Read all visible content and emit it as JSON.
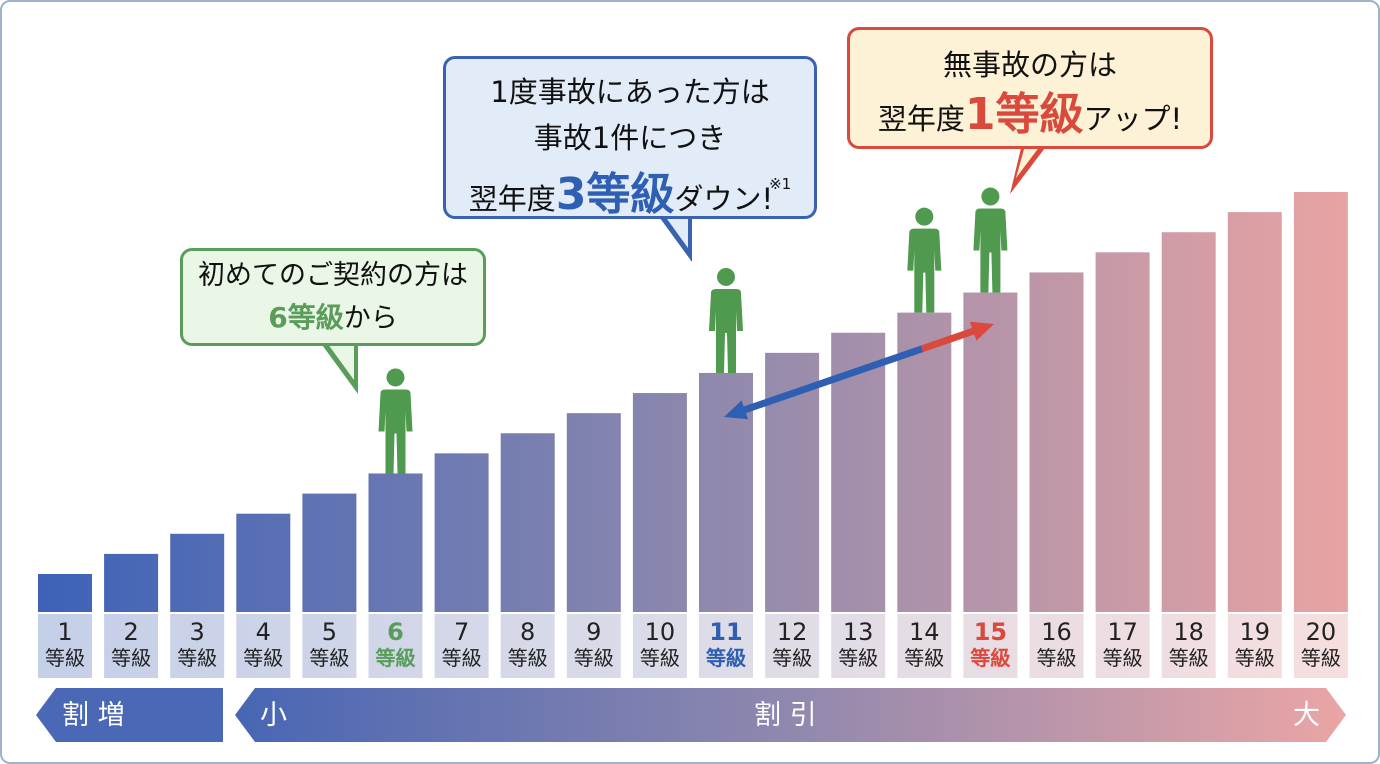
{
  "colors": {
    "bar_start": "#3d62b8",
    "bar_mid": "#8c88ae",
    "bar_end": "#e8a3a3",
    "green": "#5a9d5a",
    "blue": "#2f5fb3",
    "red": "#d94a3d",
    "person": "#4f9a4f"
  },
  "bubbles": {
    "first": {
      "line1": "初めてのご契約の方は",
      "big": "6等級",
      "rest": "から"
    },
    "accident": {
      "line1": "1度事故にあった方は",
      "line2": "事故1件につき",
      "prefix": "翌年度",
      "big": "3等級",
      "suffix": "ダウン!",
      "note": "※1"
    },
    "noaccident": {
      "line1": "無事故の方は",
      "prefix": "翌年度",
      "big": "1等級",
      "suffix": "アップ!"
    }
  },
  "grade_unit": "等級",
  "highlights": {
    "first": 6,
    "accident": 11,
    "noaccident": 15
  },
  "band": {
    "surcharge_label": "割 増",
    "discount_small": "小",
    "discount_label": "割 引",
    "discount_large": "大"
  },
  "chart_data": {
    "type": "bar",
    "categories": [
      "1",
      "2",
      "3",
      "4",
      "5",
      "6",
      "7",
      "8",
      "9",
      "10",
      "11",
      "12",
      "13",
      "14",
      "15",
      "16",
      "17",
      "18",
      "19",
      "20"
    ],
    "values": [
      1,
      2,
      3,
      4,
      5,
      6,
      7,
      8,
      9,
      10,
      11,
      12,
      13,
      14,
      15,
      16,
      17,
      18,
      19,
      20
    ],
    "people_on_grades": [
      6,
      11,
      14,
      15
    ],
    "arrow": {
      "from": 11,
      "to": 15,
      "via": 14
    }
  }
}
